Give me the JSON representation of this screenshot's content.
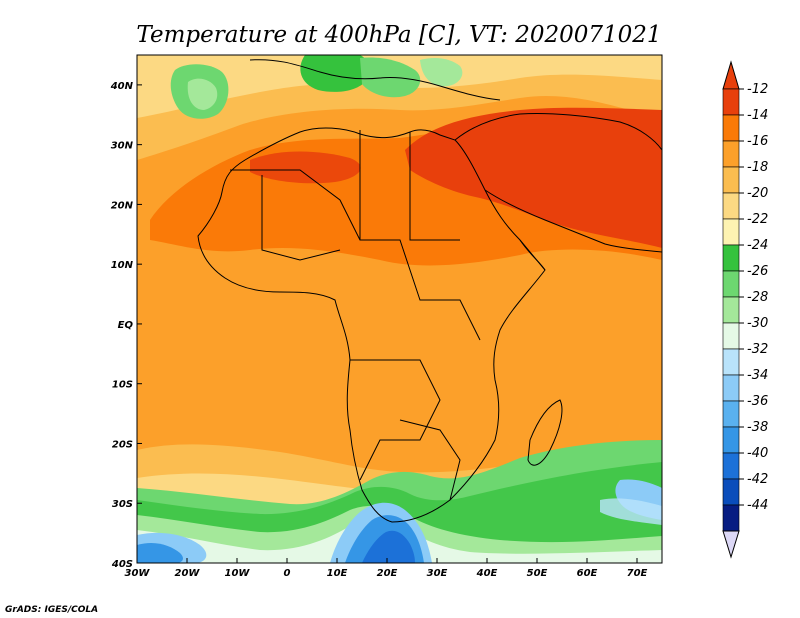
{
  "title": "Temperature at 400hPa [C], VT: 2020071021",
  "credit": "GrADS: IGES/COLA",
  "map": {
    "lon_range": [
      -30,
      75
    ],
    "lat_range": [
      -40,
      45
    ],
    "x_ticks": [
      {
        "v": -30,
        "label": "30W"
      },
      {
        "v": -20,
        "label": "20W"
      },
      {
        "v": -10,
        "label": "10W"
      },
      {
        "v": 0,
        "label": "0"
      },
      {
        "v": 10,
        "label": "10E"
      },
      {
        "v": 20,
        "label": "20E"
      },
      {
        "v": 30,
        "label": "30E"
      },
      {
        "v": 40,
        "label": "40E"
      },
      {
        "v": 50,
        "label": "50E"
      },
      {
        "v": 60,
        "label": "60E"
      },
      {
        "v": 70,
        "label": "70E"
      }
    ],
    "y_ticks": [
      {
        "v": 40,
        "label": "40N"
      },
      {
        "v": 30,
        "label": "30N"
      },
      {
        "v": 20,
        "label": "20N"
      },
      {
        "v": 10,
        "label": "10N"
      },
      {
        "v": 0,
        "label": "EQ"
      },
      {
        "v": -10,
        "label": "10S"
      },
      {
        "v": -20,
        "label": "20S"
      },
      {
        "v": -30,
        "label": "30S"
      },
      {
        "v": -40,
        "label": "40S"
      }
    ]
  },
  "colorbar": {
    "labels": [
      "-12",
      "-14",
      "-16",
      "-18",
      "-20",
      "-22",
      "-24",
      "-26",
      "-28",
      "-30",
      "-32",
      "-34",
      "-36",
      "-38",
      "-40",
      "-42",
      "-44"
    ],
    "colors": [
      "#e8400c",
      "#fa7a08",
      "#fca02a",
      "#fbbd50",
      "#fcd983",
      "#fdf3b2",
      "#35c23d",
      "#6dd770",
      "#a4e89a",
      "#e5f9e6",
      "#b9e3fb",
      "#8ccbf7",
      "#5ab1ef",
      "#3596e6",
      "#1c71d8",
      "#0a4dbb",
      "#071d82"
    ],
    "top_arrow_color": "#e8400c",
    "bottom_arrow_color": "#dcd8f6"
  }
}
